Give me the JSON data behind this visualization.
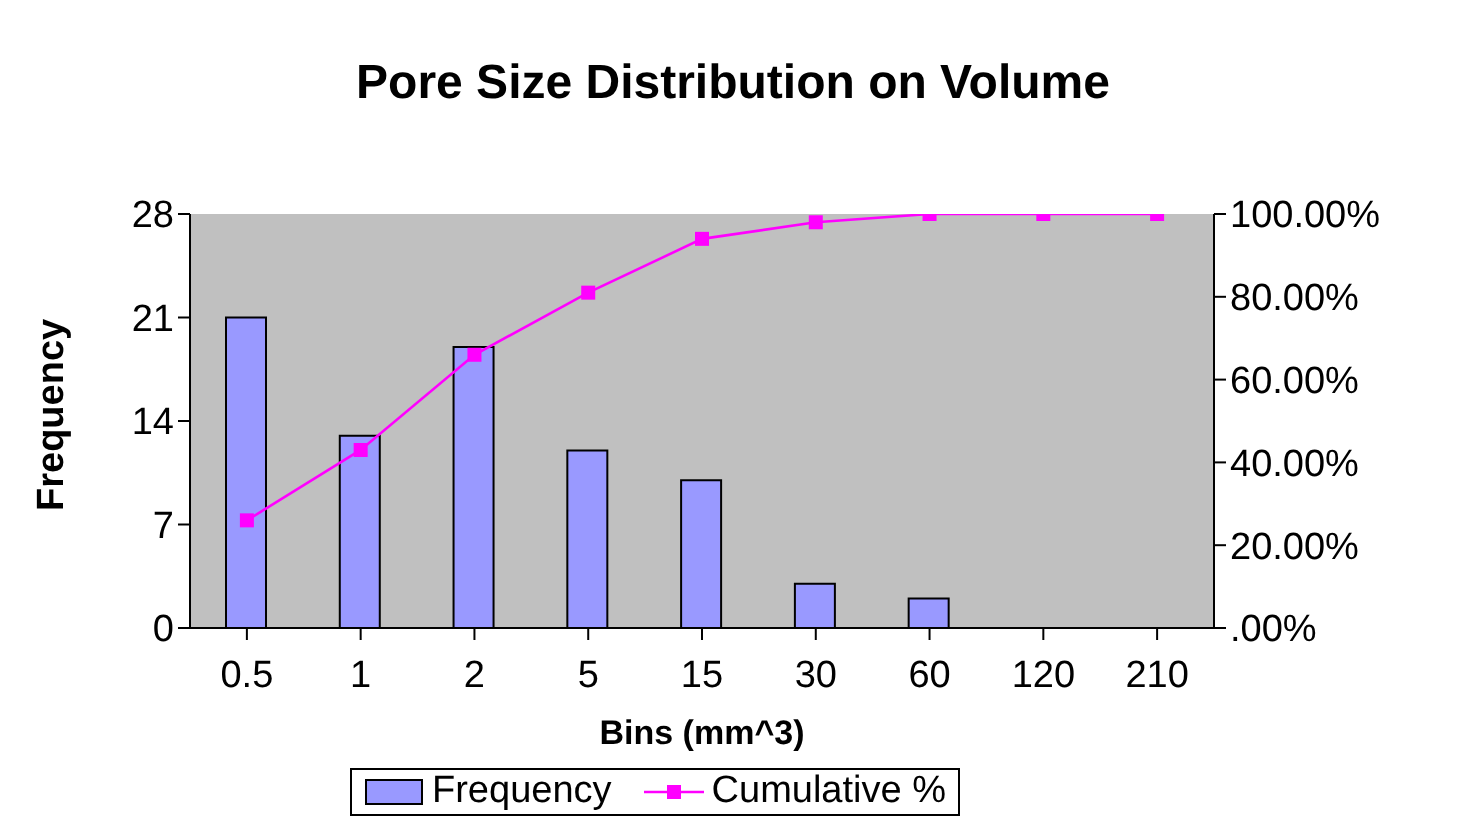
{
  "chart_data": {
    "type": "bar",
    "title": "Pore Size Distribution on Volume",
    "xlabel": "Bins (mm^3)",
    "ylabel": "Frequency",
    "categories": [
      "0.5",
      "1",
      "2",
      "5",
      "15",
      "30",
      "60",
      "120",
      "210"
    ],
    "series": [
      {
        "name": "Frequency",
        "color": "#9999ff",
        "values": [
          21,
          13,
          19,
          12,
          10,
          3,
          2,
          0,
          0
        ]
      },
      {
        "name": "Cumulative %",
        "type": "line",
        "axis": "y2",
        "color": "#ff00ff",
        "marker": "square",
        "values": [
          26,
          43,
          66,
          81,
          94,
          98,
          100,
          100,
          100
        ]
      }
    ],
    "ylim": [
      0,
      28
    ],
    "yticks": [
      0,
      7,
      14,
      21,
      28
    ],
    "y2lim": [
      0,
      100
    ],
    "y2ticks": [
      {
        "value": 0,
        "label": ".00%"
      },
      {
        "value": 20,
        "label": "20.00%"
      },
      {
        "value": 40,
        "label": "40.00%"
      },
      {
        "value": 60,
        "label": "60.00%"
      },
      {
        "value": 80,
        "label": "80.00%"
      },
      {
        "value": 100,
        "label": "100.00%"
      }
    ],
    "grid": false,
    "legend": "bottom"
  }
}
